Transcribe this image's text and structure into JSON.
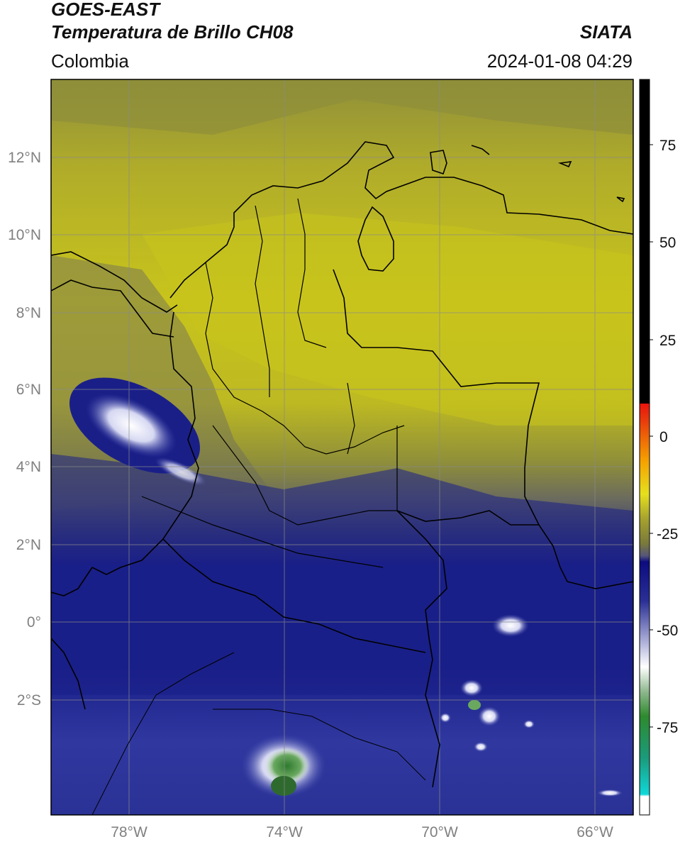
{
  "header": {
    "title_line1": "GOES-EAST",
    "title_line2": "Temperatura de Brillo CH08",
    "brand": "SIATA",
    "region": "Colombia",
    "datetime": "2024-01-08 04:29"
  },
  "map": {
    "lat_ticks": [
      "12°N",
      "10°N",
      "8°N",
      "6°N",
      "4°N",
      "2°N",
      "0°",
      "2°S"
    ],
    "lon_ticks": [
      "78°W",
      "74°W",
      "70°W",
      "66°W"
    ],
    "cloud_colors": {
      "yellow": "#c8c41c",
      "olive": "#8f8f3a",
      "gray": "#6b6b5e",
      "navy": "#1a1f88",
      "blue": "#3e46a8",
      "white": "#f2f2ff",
      "green": "#3f8a35"
    }
  },
  "colorbar": {
    "tick_labels": [
      "75",
      "50",
      "25",
      "0",
      "-25",
      "-50",
      "-75"
    ],
    "colors": {
      "black": "#000000",
      "red": "#e8140c",
      "orange": "#f5a200",
      "yellow": "#e6e01e",
      "olive": "#7a7a3a",
      "navy": "#0c0c80",
      "lavender": "#c9cbe6",
      "green": "#2e8a2e",
      "cyan": "#10d8d8",
      "white": "#ffffff"
    }
  }
}
